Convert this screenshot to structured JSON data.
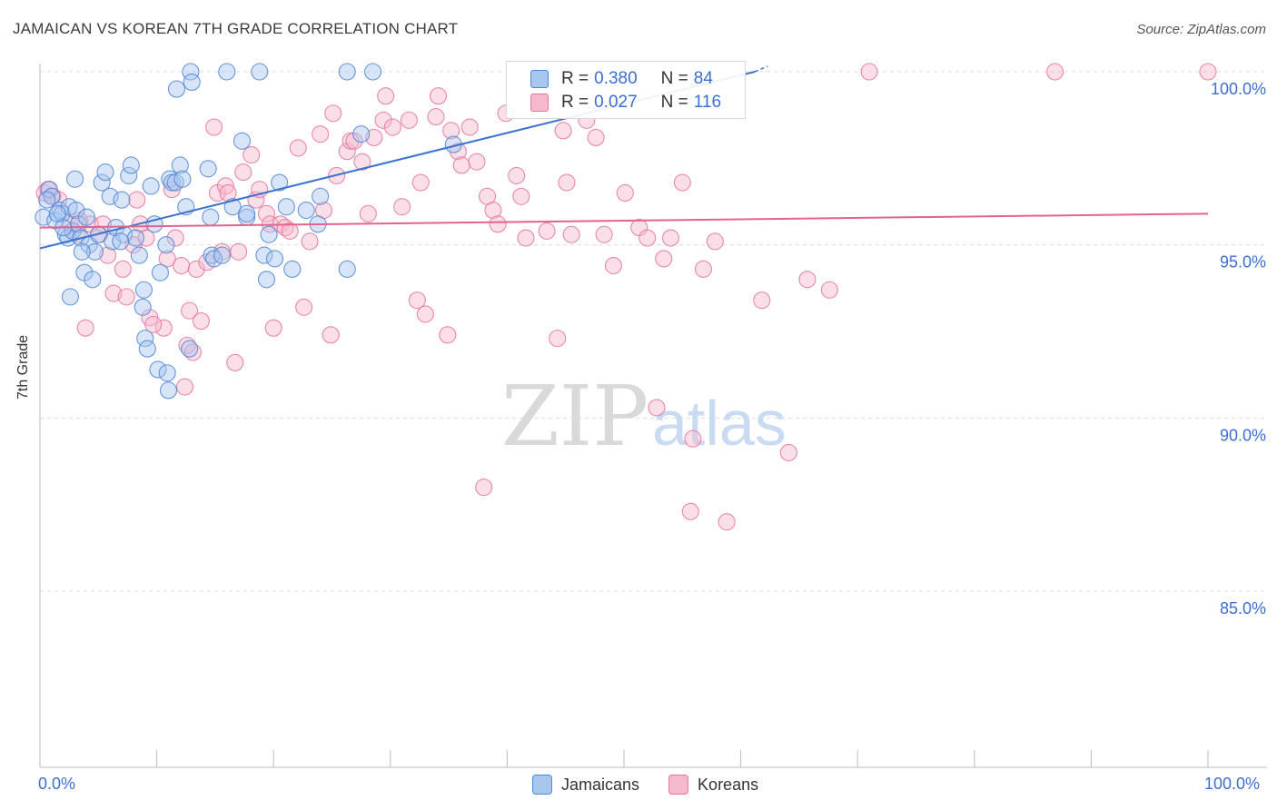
{
  "header": {
    "title": "JAMAICAN VS KOREAN 7TH GRADE CORRELATION CHART",
    "source": "Source: ZipAtlas.com"
  },
  "legend": {
    "rows": [
      {
        "r_label": "R =",
        "r_value": "0.380",
        "n_label": "N =",
        "n_value": "84"
      },
      {
        "r_label": "R =",
        "r_value": "0.027",
        "n_label": "N =",
        "n_value": "116"
      }
    ]
  },
  "bottom_legend": {
    "items": [
      "Jamaicans",
      "Koreans"
    ]
  },
  "watermark": {
    "zip": "ZIP",
    "atlas": "atlas"
  },
  "colors": {
    "blue_fill": "#a9c6ef",
    "blue_stroke": "#4f86d6",
    "blue_line": "#3a74cf",
    "pink_fill": "#f6b8cc",
    "pink_stroke": "#e6769c",
    "pink_line": "#e3638e",
    "tick_text": "#3b6fd1",
    "grid": "#dcdcdc"
  },
  "chart_data": {
    "type": "scatter",
    "title": "JAMAICAN VS KOREAN 7TH GRADE CORRELATION CHART",
    "xlabel": "",
    "ylabel": "7th Grade",
    "xlim": [
      0,
      100
    ],
    "ylim": [
      80.5,
      100.8
    ],
    "x_tick_labels": [
      "0.0%",
      "100.0%"
    ],
    "y_ticks": [
      85,
      90,
      95,
      100
    ],
    "y_tick_labels": [
      "85.0%",
      "90.0%",
      "95.0%",
      "100.0%"
    ],
    "grid": true,
    "legend_position": "top-center",
    "series": [
      {
        "name": "Jamaicans",
        "color": "#4f86d6",
        "trend": {
          "x": [
            0,
            61.2
          ],
          "y": [
            94.9,
            100.0
          ],
          "dashed_to": [
            61.2,
            61.2
          ],
          "dashed_y": [
            99.2,
            100.0
          ]
        },
        "points": [
          [
            0.3,
            95.8
          ],
          [
            0.8,
            96.6
          ],
          [
            1.0,
            96.4
          ],
          [
            1.3,
            95.7
          ],
          [
            1.7,
            96.0
          ],
          [
            1.9,
            95.9
          ],
          [
            2.2,
            95.3
          ],
          [
            2.4,
            95.2
          ],
          [
            2.5,
            96.1
          ],
          [
            2.6,
            93.5
          ],
          [
            2.8,
            95.4
          ],
          [
            3.0,
            96.9
          ],
          [
            3.1,
            96.0
          ],
          [
            3.3,
            95.6
          ],
          [
            3.5,
            95.2
          ],
          [
            3.8,
            94.2
          ],
          [
            4.0,
            95.8
          ],
          [
            4.2,
            95.0
          ],
          [
            4.5,
            94.0
          ],
          [
            4.7,
            94.8
          ],
          [
            5.0,
            95.3
          ],
          [
            5.3,
            96.8
          ],
          [
            5.6,
            97.1
          ],
          [
            6.0,
            96.4
          ],
          [
            6.2,
            95.1
          ],
          [
            6.5,
            95.5
          ],
          [
            7.0,
            96.3
          ],
          [
            7.2,
            95.3
          ],
          [
            7.6,
            97.0
          ],
          [
            7.8,
            97.3
          ],
          [
            8.2,
            95.2
          ],
          [
            8.5,
            94.7
          ],
          [
            8.8,
            93.2
          ],
          [
            8.9,
            93.7
          ],
          [
            9.0,
            92.3
          ],
          [
            9.2,
            92.0
          ],
          [
            9.5,
            96.7
          ],
          [
            9.8,
            95.6
          ],
          [
            10.1,
            91.4
          ],
          [
            10.3,
            94.2
          ],
          [
            10.8,
            95.0
          ],
          [
            11.1,
            96.9
          ],
          [
            11.3,
            96.8
          ],
          [
            10.9,
            91.3
          ],
          [
            11.0,
            90.8
          ],
          [
            11.6,
            96.8
          ],
          [
            12.0,
            97.3
          ],
          [
            12.2,
            96.9
          ],
          [
            12.5,
            96.1
          ],
          [
            12.8,
            92.0
          ],
          [
            12.9,
            100.0
          ],
          [
            13.0,
            99.7
          ],
          [
            11.7,
            99.5
          ],
          [
            14.4,
            97.2
          ],
          [
            14.6,
            95.8
          ],
          [
            14.7,
            94.7
          ],
          [
            14.9,
            94.6
          ],
          [
            15.6,
            94.7
          ],
          [
            16.0,
            100.0
          ],
          [
            16.5,
            96.1
          ],
          [
            17.3,
            98.0
          ],
          [
            17.7,
            95.8
          ],
          [
            17.7,
            95.9
          ],
          [
            18.8,
            100.0
          ],
          [
            19.2,
            94.7
          ],
          [
            19.4,
            94.0
          ],
          [
            19.6,
            95.3
          ],
          [
            20.1,
            94.6
          ],
          [
            20.5,
            96.8
          ],
          [
            21.1,
            96.1
          ],
          [
            21.6,
            94.3
          ],
          [
            22.8,
            96.0
          ],
          [
            23.8,
            95.6
          ],
          [
            24.0,
            96.4
          ],
          [
            26.3,
            94.3
          ],
          [
            26.3,
            100.0
          ],
          [
            27.5,
            98.2
          ],
          [
            28.5,
            100.0
          ],
          [
            35.4,
            97.9
          ],
          [
            0.6,
            96.3
          ],
          [
            1.5,
            95.9
          ],
          [
            2.0,
            95.5
          ],
          [
            3.6,
            94.8
          ],
          [
            6.9,
            95.1
          ]
        ]
      },
      {
        "name": "Koreans",
        "color": "#e6769c",
        "trend": {
          "x": [
            0,
            100
          ],
          "y": [
            95.5,
            95.9
          ]
        },
        "points": [
          [
            0.4,
            96.5
          ],
          [
            0.7,
            96.6
          ],
          [
            1.1,
            96.4
          ],
          [
            1.6,
            96.3
          ],
          [
            2.6,
            95.6
          ],
          [
            3.2,
            95.3
          ],
          [
            3.4,
            95.7
          ],
          [
            3.9,
            92.6
          ],
          [
            4.3,
            95.6
          ],
          [
            5.1,
            95.3
          ],
          [
            5.4,
            95.6
          ],
          [
            5.8,
            94.7
          ],
          [
            6.3,
            93.6
          ],
          [
            7.1,
            94.3
          ],
          [
            7.4,
            93.5
          ],
          [
            8.0,
            95.0
          ],
          [
            8.3,
            96.3
          ],
          [
            8.6,
            95.6
          ],
          [
            9.1,
            95.2
          ],
          [
            9.4,
            92.9
          ],
          [
            10.6,
            92.6
          ],
          [
            10.9,
            94.6
          ],
          [
            11.3,
            96.6
          ],
          [
            11.6,
            95.2
          ],
          [
            12.1,
            94.4
          ],
          [
            12.4,
            90.9
          ],
          [
            12.6,
            92.1
          ],
          [
            12.8,
            93.1
          ],
          [
            13.1,
            91.9
          ],
          [
            13.4,
            94.3
          ],
          [
            13.8,
            92.8
          ],
          [
            14.3,
            94.5
          ],
          [
            14.9,
            98.4
          ],
          [
            15.2,
            96.5
          ],
          [
            15.6,
            94.8
          ],
          [
            15.9,
            96.7
          ],
          [
            16.1,
            96.5
          ],
          [
            16.7,
            91.6
          ],
          [
            17.0,
            94.8
          ],
          [
            17.4,
            97.1
          ],
          [
            18.1,
            97.6
          ],
          [
            18.5,
            96.3
          ],
          [
            18.8,
            96.6
          ],
          [
            19.4,
            95.9
          ],
          [
            19.7,
            95.6
          ],
          [
            20.0,
            92.6
          ],
          [
            20.6,
            95.6
          ],
          [
            21.0,
            95.5
          ],
          [
            21.4,
            95.4
          ],
          [
            22.1,
            97.8
          ],
          [
            22.6,
            93.2
          ],
          [
            23.1,
            95.1
          ],
          [
            24.0,
            98.2
          ],
          [
            24.9,
            92.4
          ],
          [
            25.1,
            98.8
          ],
          [
            25.4,
            97.0
          ],
          [
            26.3,
            97.7
          ],
          [
            26.6,
            98.0
          ],
          [
            26.9,
            98.0
          ],
          [
            27.6,
            97.4
          ],
          [
            28.1,
            95.9
          ],
          [
            28.6,
            98.1
          ],
          [
            29.4,
            98.6
          ],
          [
            29.6,
            99.3
          ],
          [
            30.2,
            98.4
          ],
          [
            31.0,
            96.1
          ],
          [
            31.6,
            98.6
          ],
          [
            32.3,
            93.4
          ],
          [
            32.6,
            96.8
          ],
          [
            33.0,
            93.0
          ],
          [
            33.9,
            98.7
          ],
          [
            34.1,
            99.3
          ],
          [
            34.9,
            92.4
          ],
          [
            35.2,
            98.3
          ],
          [
            35.8,
            97.7
          ],
          [
            36.1,
            97.3
          ],
          [
            36.8,
            98.4
          ],
          [
            37.4,
            97.4
          ],
          [
            38.0,
            88.0
          ],
          [
            38.3,
            96.4
          ],
          [
            38.8,
            96.0
          ],
          [
            39.2,
            95.6
          ],
          [
            39.9,
            98.8
          ],
          [
            40.8,
            97.0
          ],
          [
            41.2,
            96.4
          ],
          [
            41.6,
            95.2
          ],
          [
            43.4,
            95.4
          ],
          [
            44.3,
            92.3
          ],
          [
            44.8,
            98.3
          ],
          [
            45.1,
            96.8
          ],
          [
            45.5,
            95.3
          ],
          [
            46.8,
            98.6
          ],
          [
            47.6,
            98.1
          ],
          [
            48.3,
            95.3
          ],
          [
            49.1,
            94.4
          ],
          [
            50.1,
            96.5
          ],
          [
            51.3,
            95.5
          ],
          [
            52.0,
            95.2
          ],
          [
            52.8,
            90.3
          ],
          [
            53.4,
            94.6
          ],
          [
            54.0,
            95.2
          ],
          [
            55.0,
            96.8
          ],
          [
            55.7,
            87.3
          ],
          [
            55.9,
            89.4
          ],
          [
            56.8,
            94.3
          ],
          [
            57.8,
            95.1
          ],
          [
            58.8,
            87.0
          ],
          [
            61.8,
            93.4
          ],
          [
            64.1,
            89.0
          ],
          [
            65.7,
            94.0
          ],
          [
            67.6,
            93.7
          ],
          [
            71.0,
            100.0
          ],
          [
            86.9,
            100.0
          ],
          [
            100.0,
            100.0
          ],
          [
            24.3,
            96.0
          ],
          [
            9.7,
            92.7
          ]
        ]
      }
    ]
  }
}
